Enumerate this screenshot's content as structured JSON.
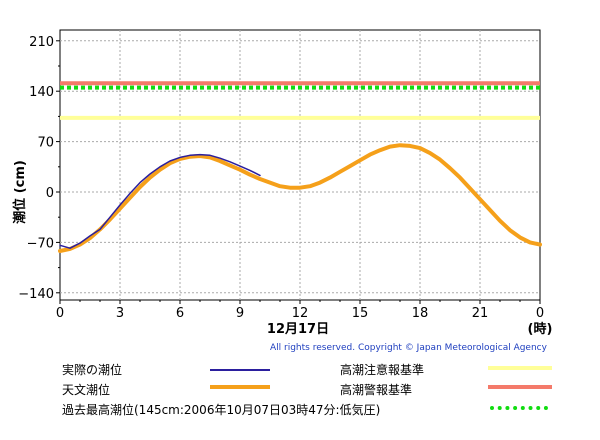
{
  "chart_data": {
    "type": "line",
    "ylabel": "潮位 (cm)",
    "x_ticks": [
      "0",
      "3",
      "6",
      "9",
      "12",
      "15",
      "18",
      "21",
      "0"
    ],
    "x_date_label": "12月17日",
    "x_unit_label": "(時)",
    "y_ticks": [
      "210",
      "140",
      "70",
      "0",
      "−70",
      "−140"
    ],
    "xlim": [
      0,
      24
    ],
    "ylim": [
      -150,
      225
    ],
    "grid": true,
    "series": [
      {
        "name": "実際の潮位",
        "color": "#2b1f9e",
        "x": [
          0,
          0.5,
          1,
          1.5,
          2,
          2.5,
          3,
          3.5,
          4,
          4.5,
          5,
          5.5,
          6,
          6.5,
          7,
          7.5,
          8,
          8.5,
          9,
          9.5,
          10
        ],
        "y": [
          -74,
          -78,
          -71,
          -61,
          -52,
          -35,
          -18,
          -2,
          13,
          25,
          35,
          43,
          48,
          51,
          52,
          51,
          47,
          42,
          36,
          30,
          23
        ]
      },
      {
        "name": "天文潮位",
        "color": "#f5a01a",
        "x": [
          0,
          0.5,
          1,
          1.5,
          2,
          2.5,
          3,
          3.5,
          4,
          4.5,
          5,
          5.5,
          6,
          6.5,
          7,
          7.5,
          8,
          8.5,
          9,
          9.5,
          10,
          10.5,
          11,
          11.5,
          12,
          12.5,
          13,
          13.5,
          14,
          14.5,
          15,
          15.5,
          16,
          16.5,
          17,
          17.5,
          18,
          18.5,
          19,
          19.5,
          20,
          20.5,
          21,
          21.5,
          22,
          22.5,
          23,
          23.5,
          24
        ],
        "y": [
          -82,
          -79,
          -73,
          -64,
          -52,
          -38,
          -23,
          -8,
          7,
          20,
          31,
          40,
          46,
          49,
          50,
          48,
          43,
          37,
          31,
          24,
          18,
          13,
          8,
          6,
          6,
          8,
          13,
          20,
          28,
          36,
          44,
          52,
          58,
          63,
          65,
          64,
          61,
          54,
          45,
          33,
          20,
          5,
          -10,
          -25,
          -40,
          -53,
          -63,
          -70,
          -73
        ]
      }
    ],
    "reference_lines": [
      {
        "name": "高潮注意報基準",
        "value": 103,
        "color": "#ffff99",
        "style": "solid"
      },
      {
        "name": "高潮警報基準",
        "value": 151,
        "color": "#f47a6a",
        "style": "solid"
      },
      {
        "name": "過去最高潮位(145cm:2006年10月07日03時47分:低気圧)",
        "value": 145,
        "color": "#11dd11",
        "style": "dotted"
      }
    ]
  },
  "copyright": "All rights reserved. Copyright © Japan Meteorological Agency",
  "legend": {
    "actual": "実際の潮位",
    "astronomical": "天文潮位",
    "record": "過去最高潮位(145cm:2006年10月07日03時47分:低気圧)",
    "advisory": "高潮注意報基準",
    "warning": "高潮警報基準"
  }
}
